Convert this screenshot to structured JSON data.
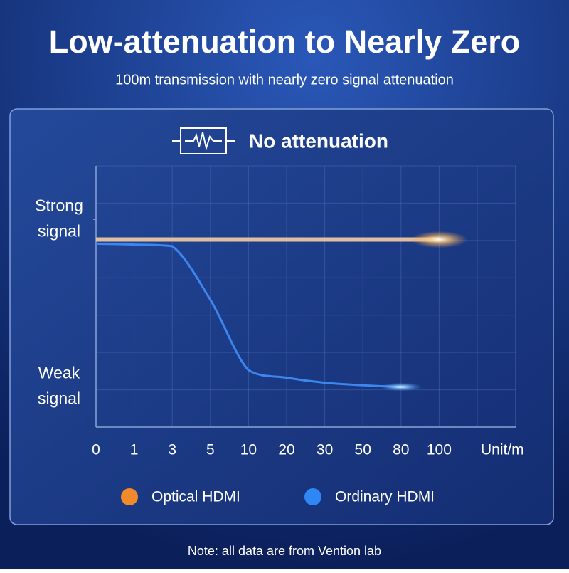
{
  "title": "Low-attenuation to Nearly Zero",
  "subtitle": "100m transmission with nearly zero signal attenuation",
  "note": "Note: all data are from Vention lab",
  "chart_data": {
    "type": "line",
    "title": "No attenuation",
    "x_label": "Unit/m",
    "categories": [
      "0",
      "1",
      "3",
      "5",
      "10",
      "20",
      "30",
      "50",
      "80",
      "100"
    ],
    "series": [
      {
        "name": "Optical HDMI",
        "color": "#e0bfa0",
        "values": [
          88,
          88,
          88,
          88,
          88,
          88,
          88,
          88,
          88,
          88
        ]
      },
      {
        "name": "Ordinary HDMI",
        "color": "#3d86f0",
        "values": [
          85.5,
          85,
          84,
          52,
          10,
          5.5,
          2.5,
          1,
          0,
          null
        ]
      }
    ],
    "ylim": [
      -24,
      132
    ],
    "yticks": [
      {
        "value": 100,
        "label": "Strong signal"
      },
      {
        "value": 0,
        "label": "Weak signal"
      }
    ],
    "legend_colors": [
      "#f08a2a",
      "#2f86f5"
    ]
  }
}
